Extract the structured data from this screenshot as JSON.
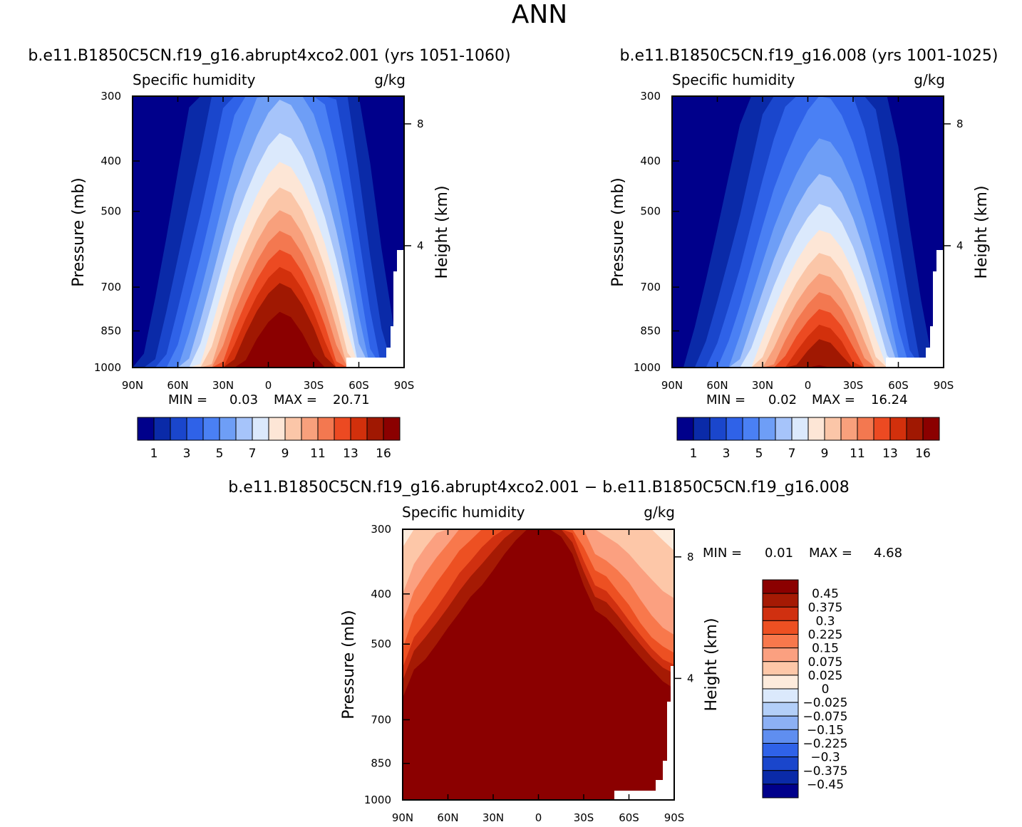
{
  "page_title": "ANN",
  "colors": {
    "seq_palette": [
      "#00008b",
      "#0a2aa8",
      "#1a46cc",
      "#2f62e8",
      "#4a80f4",
      "#6e9ef6",
      "#a6c4fa",
      "#dbe9fc",
      "#fde6d6",
      "#fbc6a8",
      "#f8a07c",
      "#f37850",
      "#ec4a22",
      "#d2300c",
      "#a01802",
      "#8b0000"
    ],
    "diff_palette": [
      "#8b0000",
      "#a51a04",
      "#d03010",
      "#ed5022",
      "#f8784c",
      "#fba080",
      "#fdc7a8",
      "#fdebdc",
      "#dbe9fc",
      "#b3cff8",
      "#8cb0f4",
      "#5f8ef0",
      "#2f62e8",
      "#1a46cc",
      "#0a2aa8",
      "#00008b"
    ]
  },
  "chart_data": [
    {
      "id": "panel-left",
      "type": "contour",
      "title": "b.e11.B1850C5CN.f19_g16.abrupt4xco2.001 (yrs 1051-1060)",
      "variable": "Specific humidity",
      "units": "g/kg",
      "ylabel": "Pressure (mb)",
      "ylabel_right": "Height (km)",
      "x_ticks": [
        "90N",
        "60N",
        "30N",
        "0",
        "30S",
        "60S",
        "90S"
      ],
      "y_ticks": [
        "300",
        "400",
        "500",
        "700",
        "850",
        "1000"
      ],
      "height_ticks": [
        "8",
        "4"
      ],
      "ylim": [
        1000,
        300
      ],
      "min_label": "MIN =",
      "min_value": "0.03",
      "max_label": "MAX =",
      "max_value": "20.71",
      "colorbar_labels": [
        "1",
        "3",
        "5",
        "7",
        "9",
        "11",
        "13",
        "16"
      ],
      "surface_values": [
        0.3,
        1.2,
        2.2,
        3.4,
        4.8,
        6.4,
        8.2,
        10.2,
        12.4,
        14.6,
        16.6,
        18.4,
        19.8,
        20.7,
        20.2,
        18.8,
        17.0,
        14.8,
        12.4,
        9.8,
        7.0,
        4.6,
        2.8,
        1.6,
        0.6
      ],
      "peak_levels": [
        2.0,
        2.5,
        2.9,
        3.5,
        4.1,
        4.6,
        5.0,
        5.5,
        6.0,
        6.4,
        6.6,
        6.8,
        7.0,
        7.1,
        7.1,
        7.0,
        6.8,
        6.6,
        6.2,
        5.7,
        5.1,
        4.4,
        3.8,
        3.3,
        2.8
      ]
    },
    {
      "id": "panel-right",
      "type": "contour",
      "title": "b.e11.B1850C5CN.f19_g16.008 (yrs 1001-1025)",
      "variable": "Specific humidity",
      "units": "g/kg",
      "ylabel": "Pressure (mb)",
      "ylabel_right": "Height (km)",
      "x_ticks": [
        "90N",
        "60N",
        "30N",
        "0",
        "30S",
        "60S",
        "90S"
      ],
      "y_ticks": [
        "300",
        "400",
        "500",
        "700",
        "850",
        "1000"
      ],
      "height_ticks": [
        "8",
        "4"
      ],
      "ylim": [
        1000,
        300
      ],
      "min_label": "MIN =",
      "min_value": "0.02",
      "max_label": "MAX =",
      "max_value": "16.24",
      "colorbar_labels": [
        "1",
        "3",
        "5",
        "7",
        "9",
        "11",
        "13",
        "16"
      ],
      "surface_values": [
        0.2,
        0.9,
        1.7,
        2.7,
        3.8,
        5.0,
        6.4,
        8.0,
        9.6,
        11.2,
        12.8,
        14.2,
        15.3,
        16.2,
        15.9,
        14.9,
        13.4,
        11.6,
        9.6,
        7.6,
        5.4,
        3.5,
        2.0,
        1.1,
        0.4
      ],
      "peak_levels": [
        1.7,
        2.1,
        2.5,
        2.9,
        3.4,
        3.9,
        4.3,
        4.8,
        5.3,
        5.7,
        5.9,
        6.1,
        6.3,
        6.4,
        6.4,
        6.3,
        6.1,
        5.8,
        5.4,
        4.9,
        4.3,
        3.7,
        3.2,
        2.7,
        2.3
      ]
    },
    {
      "id": "panel-diff",
      "type": "contour",
      "title": "b.e11.B1850C5CN.f19_g16.abrupt4xco2.001 − b.e11.B1850C5CN.f19_g16.008",
      "variable": "Specific humidity",
      "units": "g/kg",
      "ylabel": "Pressure (mb)",
      "ylabel_right": "Height (km)",
      "x_ticks": [
        "90N",
        "60N",
        "30N",
        "0",
        "30S",
        "60S",
        "90S"
      ],
      "y_ticks": [
        "300",
        "400",
        "500",
        "700",
        "850",
        "1000"
      ],
      "height_ticks": [
        "8",
        "4"
      ],
      "ylim": [
        1000,
        300
      ],
      "min_label": "MIN =",
      "min_value": "0.01",
      "max_label": "MAX =",
      "max_value": "4.68",
      "colorbar_labels": [
        "0.45",
        "0.375",
        "0.3",
        "0.225",
        "0.15",
        "0.075",
        "0.025",
        "0",
        "−0.025",
        "−0.075",
        "−0.15",
        "−0.225",
        "−0.3",
        "−0.375",
        "−0.45"
      ],
      "contour_levels": [
        "0.45",
        "0.375",
        "0.3",
        "0.225",
        "0.15",
        "0.075",
        "0.025"
      ],
      "level_pressures": [
        [
          635,
          560,
          535,
          500,
          465,
          435,
          405,
          385,
          360,
          335,
          315,
          300,
          300,
          300,
          310,
          335,
          385,
          430,
          445,
          470,
          500,
          530,
          560,
          590,
          610
        ],
        [
          588,
          515,
          485,
          455,
          425,
          395,
          370,
          350,
          330,
          312,
          300,
          300,
          300,
          300,
          300,
          318,
          362,
          405,
          415,
          440,
          470,
          500,
          530,
          555,
          570
        ],
        [
          555,
          485,
          455,
          425,
          395,
          365,
          345,
          325,
          310,
          300,
          300,
          300,
          300,
          300,
          300,
          305,
          345,
          385,
          395,
          420,
          450,
          480,
          510,
          535,
          548
        ],
        [
          510,
          440,
          410,
          380,
          355,
          330,
          315,
          300,
          300,
          300,
          300,
          300,
          300,
          300,
          300,
          300,
          325,
          360,
          370,
          395,
          420,
          455,
          485,
          505,
          520
        ],
        [
          455,
          395,
          365,
          340,
          320,
          300,
          300,
          300,
          300,
          300,
          300,
          300,
          300,
          300,
          300,
          300,
          300,
          335,
          345,
          360,
          380,
          410,
          440,
          465,
          480
        ],
        [
          400,
          350,
          325,
          305,
          300,
          300,
          300,
          300,
          300,
          300,
          300,
          300,
          300,
          300,
          300,
          300,
          300,
          300,
          310,
          320,
          335,
          355,
          375,
          395,
          408
        ],
        [
          325,
          300,
          300,
          300,
          300,
          300,
          300,
          300,
          300,
          300,
          300,
          300,
          300,
          300,
          300,
          300,
          300,
          300,
          300,
          300,
          300,
          300,
          300,
          315,
          330
        ]
      ]
    }
  ]
}
